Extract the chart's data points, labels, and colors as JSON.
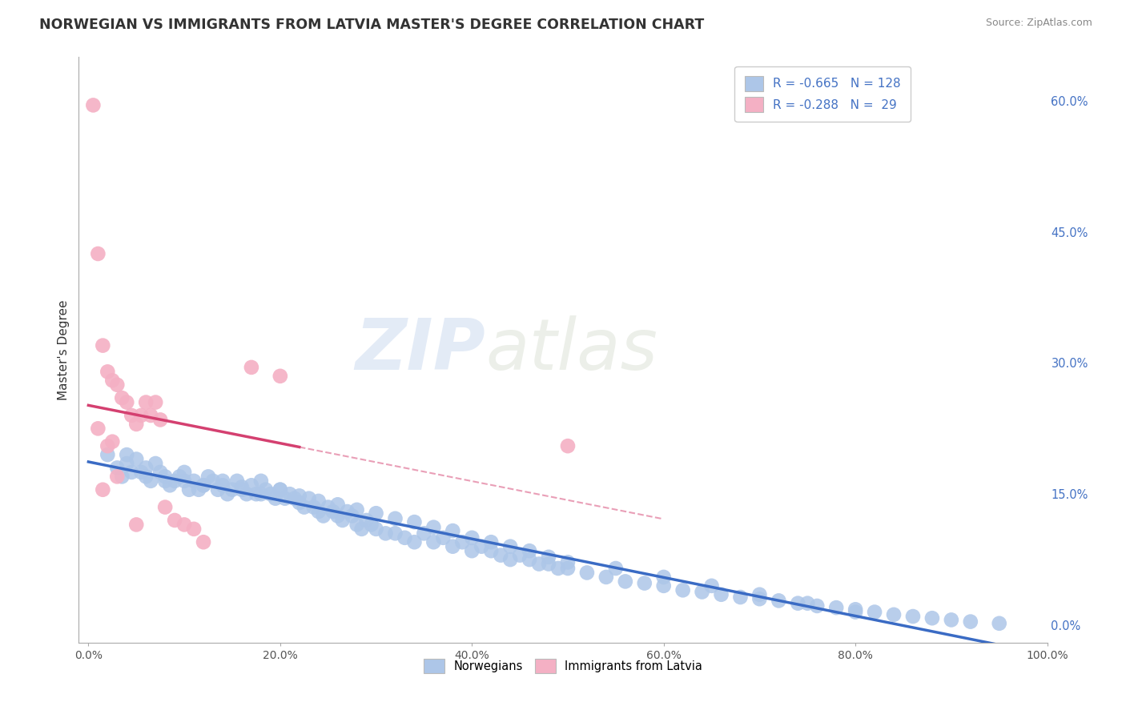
{
  "title": "NORWEGIAN VS IMMIGRANTS FROM LATVIA MASTER'S DEGREE CORRELATION CHART",
  "source": "Source: ZipAtlas.com",
  "ylabel": "Master's Degree",
  "xlabel": "",
  "xlim": [
    -0.01,
    1.0
  ],
  "ylim": [
    -0.02,
    0.65
  ],
  "x_ticks": [
    0.0,
    0.2,
    0.4,
    0.6,
    0.8,
    1.0
  ],
  "x_tick_labels": [
    "0.0%",
    "20.0%",
    "40.0%",
    "60.0%",
    "80.0%",
    "100.0%"
  ],
  "y_tick_labels_right": [
    "0.0%",
    "15.0%",
    "30.0%",
    "45.0%",
    "60.0%"
  ],
  "y_ticks_right": [
    0.0,
    0.15,
    0.3,
    0.45,
    0.6
  ],
  "watermark_zip": "ZIP",
  "watermark_atlas": "atlas",
  "legend_r1": "R = -0.665",
  "legend_n1": "N = 128",
  "legend_r2": "R = -0.288",
  "legend_n2": "N =  29",
  "norwegian_color": "#adc6e8",
  "immigrant_color": "#f4b0c4",
  "trendline_norwegian_color": "#3a6bc4",
  "trendline_immigrant_color": "#d44070",
  "background_color": "#ffffff",
  "grid_color": "#cccccc",
  "title_fontsize": 12.5,
  "norwegian_x": [
    0.02,
    0.03,
    0.035,
    0.04,
    0.045,
    0.05,
    0.055,
    0.06,
    0.065,
    0.07,
    0.075,
    0.08,
    0.085,
    0.09,
    0.095,
    0.1,
    0.105,
    0.11,
    0.115,
    0.12,
    0.125,
    0.13,
    0.135,
    0.14,
    0.145,
    0.15,
    0.155,
    0.16,
    0.165,
    0.17,
    0.175,
    0.18,
    0.185,
    0.19,
    0.195,
    0.2,
    0.205,
    0.21,
    0.215,
    0.22,
    0.225,
    0.23,
    0.235,
    0.24,
    0.245,
    0.25,
    0.255,
    0.26,
    0.265,
    0.27,
    0.275,
    0.28,
    0.285,
    0.29,
    0.295,
    0.3,
    0.31,
    0.32,
    0.33,
    0.34,
    0.35,
    0.36,
    0.37,
    0.38,
    0.39,
    0.4,
    0.41,
    0.42,
    0.43,
    0.44,
    0.45,
    0.46,
    0.47,
    0.48,
    0.49,
    0.5,
    0.52,
    0.54,
    0.56,
    0.58,
    0.6,
    0.62,
    0.64,
    0.66,
    0.68,
    0.7,
    0.72,
    0.74,
    0.76,
    0.78,
    0.8,
    0.82,
    0.84,
    0.86,
    0.88,
    0.9,
    0.92,
    0.95,
    0.04,
    0.06,
    0.08,
    0.1,
    0.12,
    0.14,
    0.16,
    0.18,
    0.2,
    0.22,
    0.24,
    0.26,
    0.28,
    0.3,
    0.32,
    0.34,
    0.36,
    0.38,
    0.4,
    0.42,
    0.44,
    0.46,
    0.48,
    0.5,
    0.55,
    0.6,
    0.65,
    0.7,
    0.75,
    0.8
  ],
  "norwegian_y": [
    0.195,
    0.18,
    0.17,
    0.185,
    0.175,
    0.19,
    0.175,
    0.17,
    0.165,
    0.185,
    0.175,
    0.17,
    0.16,
    0.165,
    0.17,
    0.165,
    0.155,
    0.165,
    0.155,
    0.16,
    0.17,
    0.165,
    0.155,
    0.16,
    0.15,
    0.155,
    0.165,
    0.155,
    0.15,
    0.16,
    0.15,
    0.165,
    0.155,
    0.15,
    0.145,
    0.155,
    0.145,
    0.15,
    0.145,
    0.14,
    0.135,
    0.145,
    0.135,
    0.13,
    0.125,
    0.135,
    0.13,
    0.125,
    0.12,
    0.13,
    0.125,
    0.115,
    0.11,
    0.12,
    0.115,
    0.11,
    0.105,
    0.105,
    0.1,
    0.095,
    0.105,
    0.095,
    0.1,
    0.09,
    0.095,
    0.085,
    0.09,
    0.085,
    0.08,
    0.075,
    0.08,
    0.075,
    0.07,
    0.07,
    0.065,
    0.065,
    0.06,
    0.055,
    0.05,
    0.048,
    0.045,
    0.04,
    0.038,
    0.035,
    0.032,
    0.03,
    0.028,
    0.025,
    0.022,
    0.02,
    0.018,
    0.015,
    0.012,
    0.01,
    0.008,
    0.006,
    0.004,
    0.002,
    0.195,
    0.18,
    0.165,
    0.175,
    0.16,
    0.165,
    0.158,
    0.15,
    0.155,
    0.148,
    0.142,
    0.138,
    0.132,
    0.128,
    0.122,
    0.118,
    0.112,
    0.108,
    0.1,
    0.095,
    0.09,
    0.085,
    0.078,
    0.072,
    0.065,
    0.055,
    0.045,
    0.035,
    0.025,
    0.015
  ],
  "immigrant_x": [
    0.005,
    0.01,
    0.015,
    0.02,
    0.025,
    0.03,
    0.035,
    0.04,
    0.045,
    0.05,
    0.055,
    0.06,
    0.065,
    0.07,
    0.075,
    0.08,
    0.09,
    0.1,
    0.11,
    0.12,
    0.01,
    0.015,
    0.02,
    0.025,
    0.03,
    0.05,
    0.17,
    0.2,
    0.5
  ],
  "immigrant_y": [
    0.595,
    0.425,
    0.32,
    0.29,
    0.28,
    0.275,
    0.26,
    0.255,
    0.24,
    0.23,
    0.24,
    0.255,
    0.24,
    0.255,
    0.235,
    0.135,
    0.12,
    0.115,
    0.11,
    0.095,
    0.225,
    0.155,
    0.205,
    0.21,
    0.17,
    0.115,
    0.295,
    0.285,
    0.205
  ]
}
